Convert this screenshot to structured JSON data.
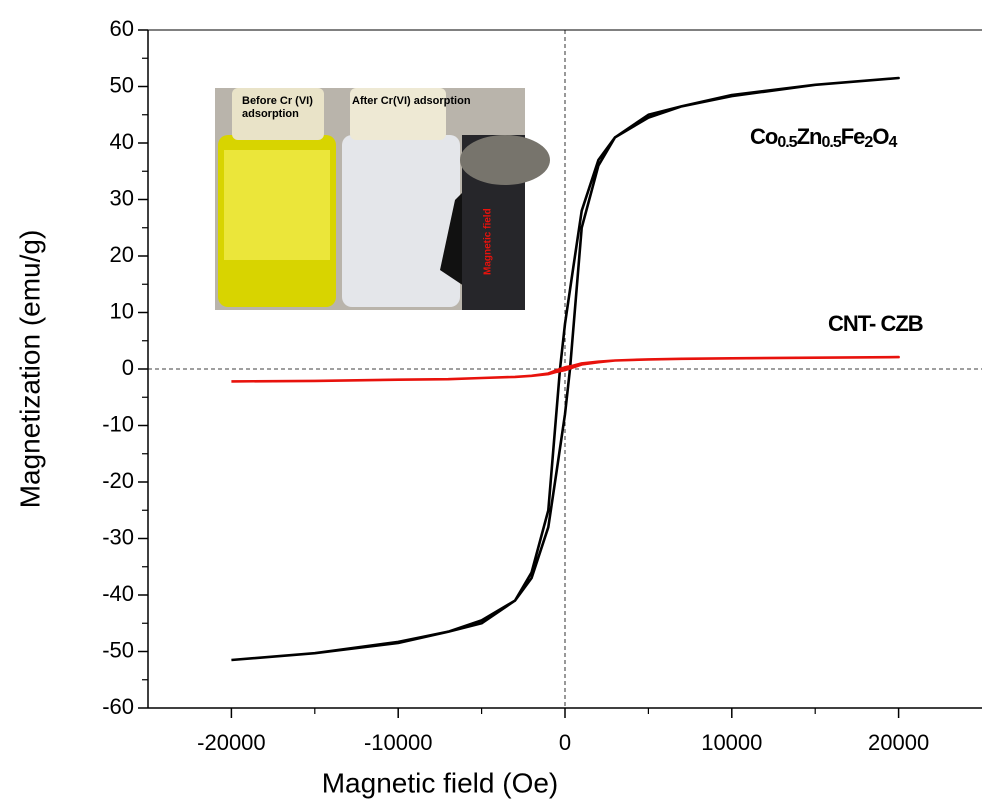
{
  "chart_data": {
    "type": "line",
    "xlabel": "Magnetic field (Oe)",
    "ylabel": "Magnetization (emu/g)",
    "x": [
      -20000,
      -15000,
      -10000,
      -7000,
      -5000,
      -3000,
      -2000,
      -1000,
      -500,
      0,
      300,
      1000,
      2000,
      3000,
      5000,
      7000,
      10000,
      15000,
      20000,
      20000,
      15000,
      10000,
      7000,
      5000,
      3000,
      2000,
      1000,
      500,
      0,
      -300,
      -1000,
      -2000,
      -3000,
      -5000,
      -7000,
      -10000,
      -15000,
      -20000
    ],
    "series": [
      {
        "name": "Co0.5Zn0.5Fe2O4",
        "color": "#000000",
        "values": [
          -51.5,
          -50.3,
          -48.3,
          -46.5,
          -44.5,
          -41,
          -37,
          -28,
          -18,
          -8,
          0,
          25,
          36,
          41,
          45,
          46.5,
          48.5,
          50.3,
          51.5,
          51.5,
          50.3,
          48.3,
          46.5,
          44.5,
          41,
          37,
          28,
          18,
          8,
          0,
          -25,
          -36,
          -41,
          -45,
          -46.5,
          -48.5,
          -50.3,
          -51.5
        ]
      },
      {
        "name": "CNT- CZB",
        "color": "#e8120c",
        "values": [
          -2.2,
          -2.1,
          -1.9,
          -1.8,
          -1.6,
          -1.4,
          -1.2,
          -0.9,
          -0.5,
          -0.2,
          0.1,
          0.8,
          1.2,
          1.5,
          1.7,
          1.8,
          1.9,
          2.0,
          2.1,
          2.1,
          2.0,
          1.9,
          1.8,
          1.7,
          1.5,
          1.3,
          1.0,
          0.6,
          0.3,
          0,
          -0.8,
          -1.2,
          -1.4,
          -1.6,
          -1.8,
          -1.9,
          -2.1,
          -2.2
        ]
      }
    ],
    "xlim": [
      -25000,
      25000
    ],
    "ylim": [
      -60,
      60
    ],
    "xticks": [
      -20000,
      -10000,
      0,
      10000,
      20000
    ],
    "yticks": [
      -60,
      -50,
      -40,
      -30,
      -20,
      -10,
      0,
      10,
      20,
      30,
      40,
      50,
      60
    ],
    "minor_ticks": true,
    "zero_lines": true,
    "inset": {
      "labels": [
        "Before Cr (VI) adsorption",
        "After Cr(VI) adsorption",
        "Magnetic field"
      ]
    }
  }
}
